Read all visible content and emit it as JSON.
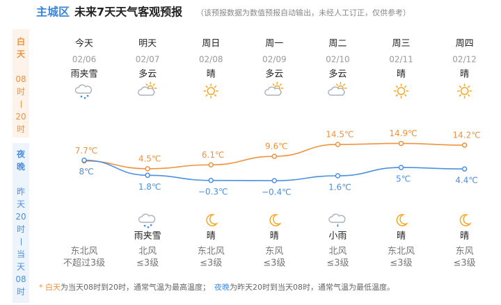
{
  "header": {
    "city": "主城区",
    "title": "未来7天天气客观预报",
    "note": "（该预报数据为数值预报自动输出，未经人工订正，仅供参考）"
  },
  "sidebar": {
    "day": {
      "label": "白天",
      "range": [
        "08时",
        "20时"
      ]
    },
    "night": {
      "label": "夜晚",
      "range": [
        "昨天20时",
        "当天08时"
      ]
    }
  },
  "days": [
    {
      "name": "今天",
      "date": "02/06",
      "day_weather": "雨夹雪",
      "night_weather": null,
      "wind": "东北风",
      "wind_level": "不超过3级"
    },
    {
      "name": "明天",
      "date": "02/07",
      "day_weather": "多云",
      "night_weather": "雨夹雪",
      "wind": "北风",
      "wind_level": "≤3级"
    },
    {
      "name": "周日",
      "date": "02/08",
      "day_weather": "晴",
      "night_weather": "晴",
      "wind": "东北风",
      "wind_level": "≤3级"
    },
    {
      "name": "周一",
      "date": "02/09",
      "day_weather": "多云",
      "night_weather": "晴",
      "wind": "东风",
      "wind_level": "≤3级"
    },
    {
      "name": "周二",
      "date": "02/10",
      "day_weather": "多云",
      "night_weather": "小雨",
      "wind": "北风",
      "wind_level": "≤3级"
    },
    {
      "name": "周三",
      "date": "02/11",
      "day_weather": "晴",
      "night_weather": "晴",
      "wind": "东北风",
      "wind_level": "≤3级"
    },
    {
      "name": "周四",
      "date": "02/12",
      "day_weather": "晴",
      "night_weather": "晴",
      "wind": "东风",
      "wind_level": "≤3级"
    }
  ],
  "chart_data": {
    "type": "line",
    "series": [
      {
        "color": "#f0913c",
        "values": [
          7.7,
          4.5,
          6.1,
          9.6,
          14.5,
          14.9,
          14.2
        ],
        "value_labels": [
          "7.7℃",
          "4.5℃",
          "6.1℃",
          "9.6℃",
          "14.5℃",
          "14.9℃",
          "14.2℃"
        ]
      },
      {
        "color": "#4a8fe0",
        "values": [
          8,
          1.8,
          -0.3,
          -0.4,
          1.6,
          5,
          4.4
        ],
        "value_labels": [
          "8℃",
          "1.8℃",
          "−0.3℃",
          "−0.4℃",
          "1.6℃",
          "5℃",
          "4.4℃"
        ]
      }
    ]
  },
  "footer": {
    "star": "* ",
    "day": "白天",
    "day_text": "为当天08时到20时，通常气温为最高温度；",
    "night": "夜晚",
    "night_text": "为昨天20时到当天08时，通常气温为最低温度。"
  }
}
